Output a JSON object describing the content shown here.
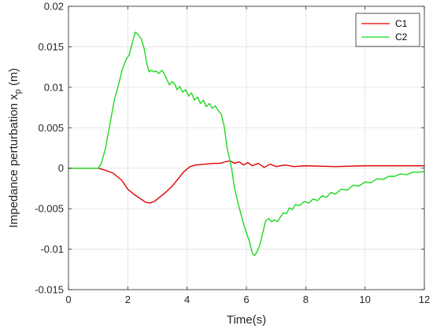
{
  "chart_data": {
    "type": "line",
    "xlabel": "Time(s)",
    "ylabel_main": "Impedance perturbation x",
    "ylabel_sub": "p",
    "ylabel_unit": " (m)",
    "xlim": [
      0,
      12
    ],
    "ylim": [
      -0.015,
      0.02
    ],
    "xticks": [
      0,
      2,
      4,
      6,
      8,
      10,
      12
    ],
    "xtick_labels": [
      "0",
      "2",
      "4",
      "6",
      "8",
      "10",
      "12"
    ],
    "yticks": [
      -0.015,
      -0.01,
      -0.005,
      0,
      0.005,
      0.01,
      0.015,
      0.02
    ],
    "ytick_labels": [
      "-0.015",
      "-0.01",
      "-0.005",
      "0",
      "0.005",
      "0.01",
      "0.015",
      "0.02"
    ],
    "grid": true,
    "legend_position": "top-right",
    "series": [
      {
        "name": "C1",
        "color": "#e00000",
        "points": [
          [
            0,
            0
          ],
          [
            1.0,
            0
          ],
          [
            1.2,
            -0.0002
          ],
          [
            1.5,
            -0.0006
          ],
          [
            1.8,
            -0.0015
          ],
          [
            2.0,
            -0.0026
          ],
          [
            2.2,
            -0.0032
          ],
          [
            2.4,
            -0.0037
          ],
          [
            2.6,
            -0.0042
          ],
          [
            2.75,
            -0.0043
          ],
          [
            2.9,
            -0.0041
          ],
          [
            3.1,
            -0.0035
          ],
          [
            3.3,
            -0.0029
          ],
          [
            3.5,
            -0.0022
          ],
          [
            3.7,
            -0.0013
          ],
          [
            3.9,
            -0.0004
          ],
          [
            4.1,
            0.0002
          ],
          [
            4.3,
            0.0004
          ],
          [
            4.6,
            0.0005
          ],
          [
            4.9,
            0.0006
          ],
          [
            5.1,
            0.0006
          ],
          [
            5.3,
            0.0008
          ],
          [
            5.45,
            0.0009
          ],
          [
            5.6,
            0.0006
          ],
          [
            5.75,
            0.0008
          ],
          [
            5.9,
            0.0004
          ],
          [
            6.05,
            0.0007
          ],
          [
            6.2,
            0.0003
          ],
          [
            6.4,
            0.0006
          ],
          [
            6.6,
            0.0001
          ],
          [
            6.8,
            0.0005
          ],
          [
            7.0,
            0.0002
          ],
          [
            7.3,
            0.0004
          ],
          [
            7.6,
            0.0002
          ],
          [
            8.0,
            0.0003
          ],
          [
            9.0,
            0.0002
          ],
          [
            10.0,
            0.0003
          ],
          [
            12.0,
            0.0003
          ]
        ]
      },
      {
        "name": "C2",
        "color": "#1ed81e",
        "points": [
          [
            0,
            0
          ],
          [
            1.0,
            0
          ],
          [
            1.1,
            0.0005
          ],
          [
            1.25,
            0.0025
          ],
          [
            1.4,
            0.0055
          ],
          [
            1.55,
            0.0085
          ],
          [
            1.7,
            0.0105
          ],
          [
            1.8,
            0.012
          ],
          [
            1.95,
            0.0135
          ],
          [
            2.05,
            0.014
          ],
          [
            2.15,
            0.0155
          ],
          [
            2.25,
            0.0168
          ],
          [
            2.35,
            0.0165
          ],
          [
            2.45,
            0.016
          ],
          [
            2.55,
            0.0148
          ],
          [
            2.65,
            0.0128
          ],
          [
            2.72,
            0.0119
          ],
          [
            2.8,
            0.0121
          ],
          [
            2.88,
            0.0119
          ],
          [
            2.95,
            0.012
          ],
          [
            3.05,
            0.0117
          ],
          [
            3.15,
            0.0121
          ],
          [
            3.22,
            0.0117
          ],
          [
            3.3,
            0.0111
          ],
          [
            3.4,
            0.0103
          ],
          [
            3.5,
            0.0107
          ],
          [
            3.58,
            0.0104
          ],
          [
            3.66,
            0.0097
          ],
          [
            3.75,
            0.0101
          ],
          [
            3.85,
            0.0094
          ],
          [
            3.95,
            0.0097
          ],
          [
            4.05,
            0.0089
          ],
          [
            4.15,
            0.0093
          ],
          [
            4.25,
            0.0084
          ],
          [
            4.35,
            0.0088
          ],
          [
            4.45,
            0.008
          ],
          [
            4.55,
            0.0084
          ],
          [
            4.65,
            0.0076
          ],
          [
            4.75,
            0.008
          ],
          [
            4.85,
            0.0074
          ],
          [
            4.95,
            0.0077
          ],
          [
            5.05,
            0.0071
          ],
          [
            5.15,
            0.0067
          ],
          [
            5.25,
            0.0052
          ],
          [
            5.35,
            0.0025
          ],
          [
            5.5,
            0.0
          ],
          [
            5.6,
            -0.0025
          ],
          [
            5.75,
            -0.0048
          ],
          [
            5.9,
            -0.0068
          ],
          [
            6.0,
            -0.008
          ],
          [
            6.1,
            -0.009
          ],
          [
            6.2,
            -0.0105
          ],
          [
            6.27,
            -0.0108
          ],
          [
            6.35,
            -0.0104
          ],
          [
            6.45,
            -0.0095
          ],
          [
            6.55,
            -0.008
          ],
          [
            6.65,
            -0.0065
          ],
          [
            6.75,
            -0.0062
          ],
          [
            6.85,
            -0.0066
          ],
          [
            6.95,
            -0.0064
          ],
          [
            7.05,
            -0.0066
          ],
          [
            7.15,
            -0.006
          ],
          [
            7.25,
            -0.0055
          ],
          [
            7.35,
            -0.0056
          ],
          [
            7.45,
            -0.0049
          ],
          [
            7.55,
            -0.0051
          ],
          [
            7.65,
            -0.0045
          ],
          [
            7.8,
            -0.0046
          ],
          [
            7.95,
            -0.0041
          ],
          [
            8.1,
            -0.0043
          ],
          [
            8.25,
            -0.0038
          ],
          [
            8.4,
            -0.004
          ],
          [
            8.55,
            -0.0034
          ],
          [
            8.7,
            -0.0036
          ],
          [
            8.85,
            -0.003
          ],
          [
            9.0,
            -0.0032
          ],
          [
            9.2,
            -0.0026
          ],
          [
            9.4,
            -0.0027
          ],
          [
            9.6,
            -0.0021
          ],
          [
            9.8,
            -0.0022
          ],
          [
            10.0,
            -0.0017
          ],
          [
            10.2,
            -0.0018
          ],
          [
            10.4,
            -0.0013
          ],
          [
            10.6,
            -0.0014
          ],
          [
            10.8,
            -0.001
          ],
          [
            11.0,
            -0.001
          ],
          [
            11.2,
            -0.0007
          ],
          [
            11.4,
            -0.0008
          ],
          [
            11.6,
            -0.0005
          ],
          [
            11.8,
            -0.0005
          ],
          [
            12.0,
            -0.0004
          ]
        ]
      }
    ]
  }
}
